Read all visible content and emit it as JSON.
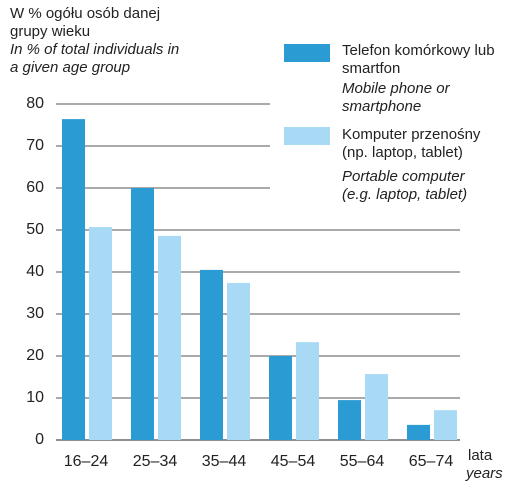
{
  "chart_data": {
    "type": "bar",
    "y_label": "W % ogółu osób danej grupy wieku",
    "y_label_en": "In % of total individuals in a given age group",
    "x_label": "lata",
    "x_label_en": "years",
    "categories": [
      "16–24",
      "25–34",
      "35–44",
      "45–54",
      "55–64",
      "65–74"
    ],
    "series": [
      {
        "name": "Telefon komórkowy lub smartfon",
        "name_en": "Mobile phone or smartphone",
        "color": "#2a9bd3",
        "values": [
          76.4,
          60,
          40.5,
          20,
          9.5,
          3.6
        ]
      },
      {
        "name": "Komputer przenośny (np. laptop, tablet)",
        "name_en": "Portable computer (e.g. laptop, tablet)",
        "color": "#a9daf5",
        "values": [
          50.7,
          48.6,
          37.4,
          23.3,
          15.7,
          7.1
        ]
      }
    ],
    "ylim": [
      0,
      80
    ],
    "yticks": [
      0,
      10,
      20,
      30,
      40,
      50,
      60,
      70,
      80
    ],
    "grid": true
  }
}
